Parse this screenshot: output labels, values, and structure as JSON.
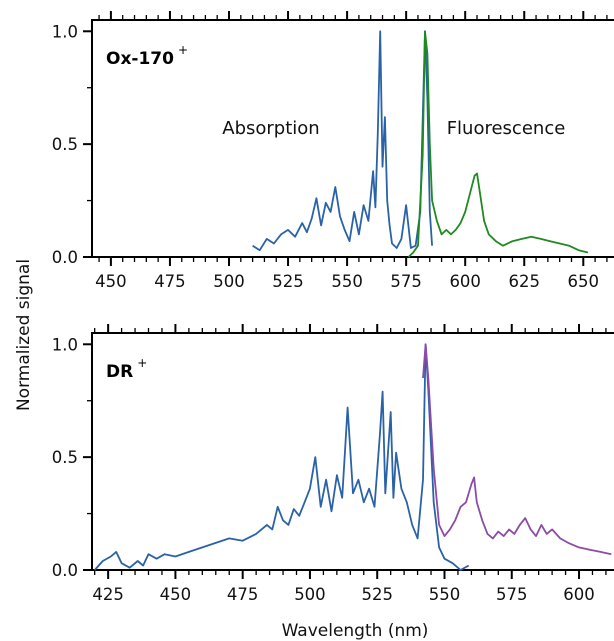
{
  "figure": {
    "ylabel": "Normalized signal",
    "xlabel": "Wavelength (nm)"
  },
  "colors": {
    "absorption": "#2a62a8",
    "fluorescence_top": "#1f8a1f",
    "fluorescence_bottom": "#8b4ba6",
    "axis": "#000000"
  },
  "chart_data": [
    {
      "type": "line",
      "panel_label": "Ox-170",
      "panel_label_sup": "+",
      "annotations": [
        "Absorption",
        "Fluorescence"
      ],
      "xlabel": "",
      "ylabel": "Normalized signal",
      "xlim": [
        442,
        663
      ],
      "ylim": [
        0,
        1.05
      ],
      "x_ticks": [
        450,
        475,
        500,
        525,
        550,
        575,
        600,
        625,
        650
      ],
      "y_ticks": [
        0.0,
        0.5,
        1.0
      ],
      "y_tick_labels": [
        "0.0",
        "0.5",
        "1.0"
      ],
      "series": [
        {
          "role": "absorption",
          "color": "#2a62a8",
          "x": [
            510,
            513,
            516,
            519,
            522,
            525,
            528,
            531,
            533,
            535,
            537,
            539,
            541,
            543,
            545,
            547,
            549,
            551,
            553,
            555,
            557,
            559,
            561,
            562,
            563,
            564,
            565,
            566,
            567,
            568,
            569,
            571,
            573,
            575,
            577,
            579,
            581,
            583,
            584,
            585,
            586
          ],
          "y": [
            0.05,
            0.03,
            0.08,
            0.06,
            0.1,
            0.12,
            0.09,
            0.15,
            0.11,
            0.17,
            0.26,
            0.14,
            0.24,
            0.2,
            0.31,
            0.18,
            0.12,
            0.07,
            0.2,
            0.1,
            0.23,
            0.16,
            0.38,
            0.22,
            0.55,
            1.0,
            0.4,
            0.62,
            0.25,
            0.14,
            0.06,
            0.04,
            0.08,
            0.23,
            0.04,
            0.05,
            0.2,
            1.0,
            0.7,
            0.2,
            0.05
          ]
        },
        {
          "role": "fluorescence",
          "color": "#1f8a1f",
          "x": [
            576,
            578,
            580,
            582,
            583,
            584,
            585,
            586,
            588,
            590,
            592,
            594,
            596,
            598,
            600,
            602,
            604,
            605,
            606,
            608,
            610,
            613,
            616,
            620,
            624,
            628,
            632,
            636,
            640,
            644,
            648,
            652
          ],
          "y": [
            0.0,
            0.02,
            0.05,
            0.45,
            1.0,
            0.9,
            0.5,
            0.25,
            0.16,
            0.1,
            0.12,
            0.1,
            0.12,
            0.15,
            0.2,
            0.28,
            0.36,
            0.37,
            0.3,
            0.16,
            0.1,
            0.07,
            0.05,
            0.07,
            0.08,
            0.09,
            0.08,
            0.07,
            0.06,
            0.05,
            0.03,
            0.02
          ]
        }
      ]
    },
    {
      "type": "line",
      "panel_label": "DR",
      "panel_label_sup": "+",
      "xlabel": "Wavelength (nm)",
      "ylabel": "Normalized signal",
      "xlim": [
        419,
        613
      ],
      "ylim": [
        0,
        1.05
      ],
      "x_ticks": [
        425,
        450,
        475,
        500,
        525,
        550,
        575,
        600
      ],
      "y_ticks": [
        0.0,
        0.5,
        1.0
      ],
      "y_tick_labels": [
        "0.0",
        "0.5",
        "1.0"
      ],
      "series": [
        {
          "role": "absorption",
          "color": "#2a62a8",
          "x": [
            420,
            423,
            426,
            428,
            430,
            433,
            436,
            438,
            440,
            443,
            446,
            450,
            455,
            460,
            465,
            470,
            475,
            480,
            484,
            486,
            488,
            490,
            492,
            494,
            496,
            498,
            500,
            502,
            504,
            506,
            508,
            510,
            512,
            514,
            516,
            518,
            520,
            522,
            524,
            526,
            527,
            528,
            530,
            531,
            532,
            534,
            536,
            538,
            540,
            542,
            543,
            544,
            546,
            548,
            550,
            553,
            556,
            559
          ],
          "y": [
            0.0,
            0.04,
            0.06,
            0.08,
            0.03,
            0.01,
            0.04,
            0.02,
            0.07,
            0.05,
            0.07,
            0.06,
            0.08,
            0.1,
            0.12,
            0.14,
            0.13,
            0.16,
            0.2,
            0.18,
            0.28,
            0.22,
            0.2,
            0.27,
            0.24,
            0.3,
            0.36,
            0.5,
            0.28,
            0.4,
            0.26,
            0.42,
            0.32,
            0.72,
            0.34,
            0.4,
            0.3,
            0.36,
            0.28,
            0.6,
            0.79,
            0.34,
            0.7,
            0.32,
            0.52,
            0.36,
            0.3,
            0.2,
            0.14,
            0.4,
            1.0,
            0.8,
            0.3,
            0.1,
            0.05,
            0.03,
            0.0,
            0.02
          ]
        },
        {
          "role": "fluorescence",
          "color": "#8b4ba6",
          "x": [
            542,
            543,
            544,
            546,
            548,
            550,
            552,
            554,
            556,
            558,
            560,
            561,
            562,
            564,
            566,
            568,
            570,
            572,
            574,
            576,
            578,
            580,
            582,
            584,
            586,
            588,
            590,
            593,
            596,
            600,
            604,
            608,
            612
          ],
          "y": [
            0.85,
            1.0,
            0.85,
            0.45,
            0.2,
            0.15,
            0.18,
            0.22,
            0.28,
            0.3,
            0.38,
            0.41,
            0.3,
            0.22,
            0.16,
            0.14,
            0.17,
            0.15,
            0.18,
            0.16,
            0.2,
            0.23,
            0.18,
            0.15,
            0.2,
            0.16,
            0.18,
            0.14,
            0.12,
            0.1,
            0.09,
            0.08,
            0.07
          ]
        }
      ]
    }
  ]
}
